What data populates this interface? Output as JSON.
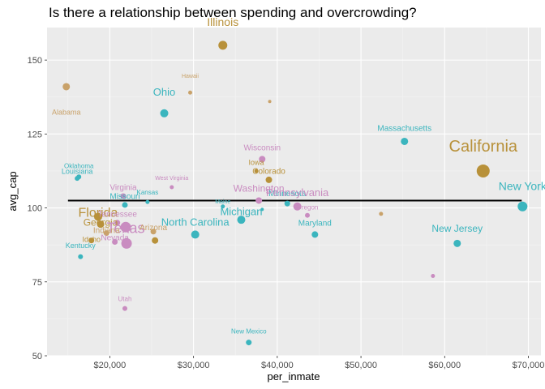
{
  "chart_data": {
    "type": "scatter",
    "title": "Is there a relationship between spending and overcrowding?",
    "xlabel": "per_inmate",
    "ylabel": "avg_cap",
    "xlim": [
      12500,
      71500
    ],
    "ylim": [
      50,
      161
    ],
    "x_ticks": [
      {
        "value": 20000,
        "label": "$20,000"
      },
      {
        "value": 30000,
        "label": "$30,000"
      },
      {
        "value": 40000,
        "label": "$40,000"
      },
      {
        "value": 50000,
        "label": "$50,000"
      },
      {
        "value": 60000,
        "label": "$60,000"
      },
      {
        "value": 70000,
        "label": "$70,000"
      }
    ],
    "y_ticks": [
      {
        "value": 50,
        "label": "50"
      },
      {
        "value": 75,
        "label": "75"
      },
      {
        "value": 100,
        "label": "100"
      },
      {
        "value": 125,
        "label": "125"
      },
      {
        "value": 150,
        "label": "150"
      }
    ],
    "grid": true,
    "background": "#ebebeb",
    "trend_line": {
      "x": [
        15000,
        69200
      ],
      "y": [
        102.5,
        102.5
      ],
      "color": "#000000"
    },
    "colors": {
      "gold": "#b8913a",
      "teal": "#3bb5be",
      "pink": "#c98cc0",
      "tan": "#c9a26a"
    },
    "points": [
      {
        "label": "Alabama",
        "x": 14800,
        "y": 141,
        "r": 4.5,
        "color": "#c9a26a",
        "fs": 9,
        "ly": 131.5
      },
      {
        "label": "Illinois",
        "x": 33500,
        "y": 155,
        "r": 5.5,
        "color": "#b8913a",
        "fs": 14,
        "ly": 161.5
      },
      {
        "label": "Hawaii",
        "x": 29600,
        "y": 139,
        "r": 2.5,
        "color": "#c9a26a",
        "fs": 7,
        "ly": 144
      },
      {
        "label": "",
        "x": 39100,
        "y": 136,
        "r": 2,
        "color": "#c9a26a",
        "fs": 6,
        "ly": 0
      },
      {
        "label": "Ohio",
        "x": 26500,
        "y": 132,
        "r": 5,
        "color": "#3bb5be",
        "fs": 13,
        "ly": 138
      },
      {
        "label": "Massachusetts",
        "x": 55200,
        "y": 122.5,
        "r": 4.5,
        "color": "#3bb5be",
        "fs": 10,
        "ly": 126
      },
      {
        "label": "California",
        "x": 64600,
        "y": 112.5,
        "r": 8,
        "color": "#b8913a",
        "fs": 20,
        "ly": 119
      },
      {
        "label": "Wisconsin",
        "x": 38200,
        "y": 116.5,
        "r": 4,
        "color": "#c98cc0",
        "fs": 10,
        "ly": 119.5
      },
      {
        "label": "Iowa",
        "x": 37500,
        "y": 112.5,
        "r": 2.5,
        "color": "#b8913a",
        "fs": 9,
        "ly": 114.5
      },
      {
        "label": "Colorado",
        "x": 39000,
        "y": 109.5,
        "r": 4,
        "color": "#b8913a",
        "fs": 10,
        "ly": 111.5
      },
      {
        "label": "Oklahoma",
        "x": 16300,
        "y": 110.5,
        "r": 3,
        "color": "#3bb5be",
        "fs": 8,
        "ly": 113.5
      },
      {
        "label": "Louisiana",
        "x": 16100,
        "y": 110,
        "r": 3,
        "color": "#3bb5be",
        "fs": 9,
        "ly": 111.5
      },
      {
        "label": "West Virginia",
        "x": 27400,
        "y": 107,
        "r": 2.5,
        "color": "#c98cc0",
        "fs": 7,
        "ly": 109.5
      },
      {
        "label": "Virginia",
        "x": 21600,
        "y": 104,
        "r": 3.5,
        "color": "#c98cc0",
        "fs": 10,
        "ly": 106
      },
      {
        "label": "Kansas",
        "x": 24500,
        "y": 102,
        "r": 2.5,
        "color": "#3bb5be",
        "fs": 8,
        "ly": 104.5
      },
      {
        "label": "Missouri",
        "x": 21800,
        "y": 101,
        "r": 3.5,
        "color": "#3bb5be",
        "fs": 10,
        "ly": 103
      },
      {
        "label": "Florida",
        "x": 18600,
        "y": 97,
        "r": 5,
        "color": "#b8913a",
        "fs": 16,
        "ly": 97
      },
      {
        "label": "Washington",
        "x": 37800,
        "y": 102.5,
        "r": 4,
        "color": "#c98cc0",
        "fs": 12,
        "ly": 105.5
      },
      {
        "label": "Minnesota",
        "x": 41200,
        "y": 101.5,
        "r": 3.5,
        "color": "#3bb5be",
        "fs": 10,
        "ly": 104
      },
      {
        "label": "Pennsylvania",
        "x": 42400,
        "y": 100.5,
        "r": 5,
        "color": "#c98cc0",
        "fs": 13,
        "ly": 104
      },
      {
        "label": "Oregon",
        "x": 43600,
        "y": 97.5,
        "r": 3,
        "color": "#c98cc0",
        "fs": 8,
        "ly": 99.5
      },
      {
        "label": "Maine",
        "x": 33500,
        "y": 100.5,
        "r": 2.5,
        "color": "#3bb5be",
        "fs": 7,
        "ly": 101.5
      },
      {
        "label": "",
        "x": 38200,
        "y": 99.5,
        "r": 2,
        "color": "#3bb5be",
        "fs": 6,
        "ly": 0
      },
      {
        "label": "Michigan",
        "x": 35700,
        "y": 96,
        "r": 5,
        "color": "#3bb5be",
        "fs": 13,
        "ly": 97.5
      },
      {
        "label": "Tennessee",
        "x": 20900,
        "y": 95,
        "r": 3.5,
        "color": "#c98cc0",
        "fs": 10,
        "ly": 97
      },
      {
        "label": "Georgia",
        "x": 18900,
        "y": 94.5,
        "r": 4.5,
        "color": "#b8913a",
        "fs": 12,
        "ly": 94
      },
      {
        "label": "Texas",
        "x": 21900,
        "y": 93.5,
        "r": 6.5,
        "color": "#c98cc0",
        "fs": 18,
        "ly": 91.5
      },
      {
        "label": "North Carolina",
        "x": 30200,
        "y": 91,
        "r": 5,
        "color": "#3bb5be",
        "fs": 13,
        "ly": 94
      },
      {
        "label": "Arizona",
        "x": 25200,
        "y": 92,
        "r": 3.5,
        "color": "#c9a26a",
        "fs": 10,
        "ly": 92.5
      },
      {
        "label": "Indiana",
        "x": 19600,
        "y": 91.5,
        "r": 3.5,
        "color": "#c9a26a",
        "fs": 10,
        "ly": 91.5
      },
      {
        "label": "Idaho",
        "x": 17800,
        "y": 89,
        "r": 3.5,
        "color": "#b8913a",
        "fs": 9,
        "ly": 88.5
      },
      {
        "label": "Nevada",
        "x": 20600,
        "y": 88.5,
        "r": 3.5,
        "color": "#c98cc0",
        "fs": 10,
        "ly": 89
      },
      {
        "label": "",
        "x": 22000,
        "y": 88,
        "r": 6.5,
        "color": "#c98cc0",
        "fs": 6,
        "ly": 0
      },
      {
        "label": "",
        "x": 25400,
        "y": 89,
        "r": 4,
        "color": "#b8913a",
        "fs": 6,
        "ly": 0
      },
      {
        "label": "Maryland",
        "x": 44500,
        "y": 91,
        "r": 4,
        "color": "#3bb5be",
        "fs": 10,
        "ly": 94
      },
      {
        "label": "",
        "x": 52400,
        "y": 98,
        "r": 2.5,
        "color": "#c9a26a",
        "fs": 6,
        "ly": 0
      },
      {
        "label": "New York",
        "x": 69300,
        "y": 100.5,
        "r": 6,
        "color": "#3bb5be",
        "fs": 14,
        "ly": 106
      },
      {
        "label": "New Jersey",
        "x": 61500,
        "y": 88,
        "r": 4.5,
        "color": "#3bb5be",
        "fs": 12,
        "ly": 92
      },
      {
        "label": "Kentucky",
        "x": 16500,
        "y": 83.5,
        "r": 3,
        "color": "#3bb5be",
        "fs": 9,
        "ly": 86.5
      },
      {
        "label": "",
        "x": 58600,
        "y": 77,
        "r": 2.5,
        "color": "#c98cc0",
        "fs": 6,
        "ly": 0
      },
      {
        "label": "Utah",
        "x": 21800,
        "y": 66,
        "r": 3,
        "color": "#c98cc0",
        "fs": 8,
        "ly": 68.5
      },
      {
        "label": "New Mexico",
        "x": 36600,
        "y": 54.5,
        "r": 3.5,
        "color": "#3bb5be",
        "fs": 8,
        "ly": 57.5
      }
    ],
    "tiny_labels": [
      {
        "text": "",
        "x": 39100,
        "y": 138.5
      },
      {
        "text": "",
        "x": 56200,
        "y": 100.5
      },
      {
        "text": "",
        "x": 58600,
        "y": 79.5
      }
    ]
  }
}
